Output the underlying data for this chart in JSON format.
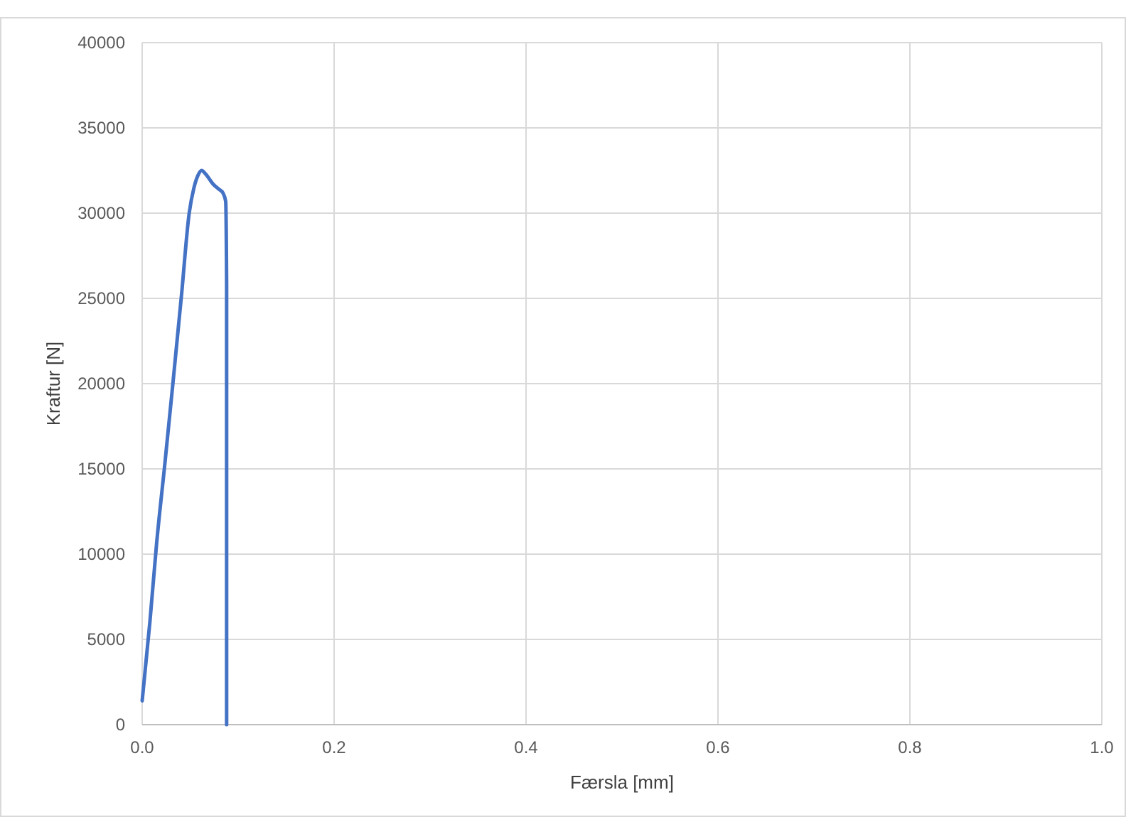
{
  "chart_data": {
    "type": "line",
    "xlabel": "Færsla [mm]",
    "ylabel": "Kraftur [N]",
    "xlim": [
      0,
      1
    ],
    "xticks": [
      {
        "value": 0,
        "label": "0.0"
      },
      {
        "value": 0.2,
        "label": "0.2"
      },
      {
        "value": 0.4,
        "label": "0.4"
      },
      {
        "value": 0.6,
        "label": "0.6"
      },
      {
        "value": 0.8,
        "label": "0.8"
      },
      {
        "value": 1,
        "label": "1.0"
      }
    ],
    "ylim": [
      0,
      40000
    ],
    "yticks": [
      0,
      5000,
      10000,
      15000,
      20000,
      25000,
      30000,
      35000,
      40000
    ],
    "grid": true,
    "series": [
      {
        "color": "#4472c4",
        "x": [
          0,
          0.008,
          0.015,
          0.024,
          0.032,
          0.041,
          0.049,
          0.054,
          0.058,
          0.062,
          0.066,
          0.074,
          0.08,
          0.084,
          0.087,
          0.088,
          0.088,
          0.088
        ],
        "values": [
          1400,
          6000,
          10600,
          15500,
          20000,
          25200,
          30000,
          31500,
          32200,
          32500,
          32300,
          31700,
          31400,
          31200,
          30700,
          25800,
          10000,
          0
        ]
      }
    ]
  }
}
